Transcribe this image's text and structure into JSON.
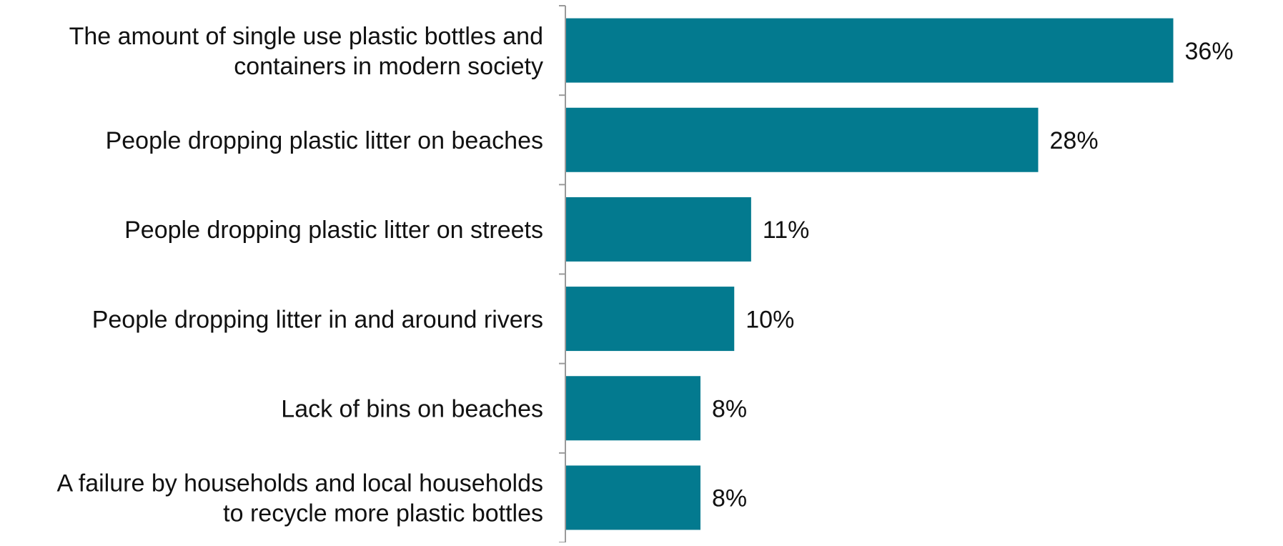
{
  "chart_data": {
    "type": "bar",
    "orientation": "horizontal",
    "categories": [
      [
        "The amount of single use plastic bottles and",
        "containers in modern society"
      ],
      [
        "People dropping plastic litter on beaches"
      ],
      [
        "People dropping plastic litter on streets"
      ],
      [
        "People dropping litter in and around rivers"
      ],
      [
        "Lack of bins on beaches"
      ],
      [
        "A failure by households and local households",
        "to recycle more plastic bottles"
      ]
    ],
    "values": [
      36,
      28,
      11,
      10,
      8,
      8
    ],
    "data_labels": [
      "36%",
      "28%",
      "11%",
      "10%",
      "8%",
      "8%"
    ],
    "unit": "%",
    "xlim": [
      0,
      40
    ],
    "bar_color": "#037a8f",
    "axis_color": "#9a9a9a",
    "text_color": "#111111",
    "grid": false,
    "legend": "none"
  }
}
